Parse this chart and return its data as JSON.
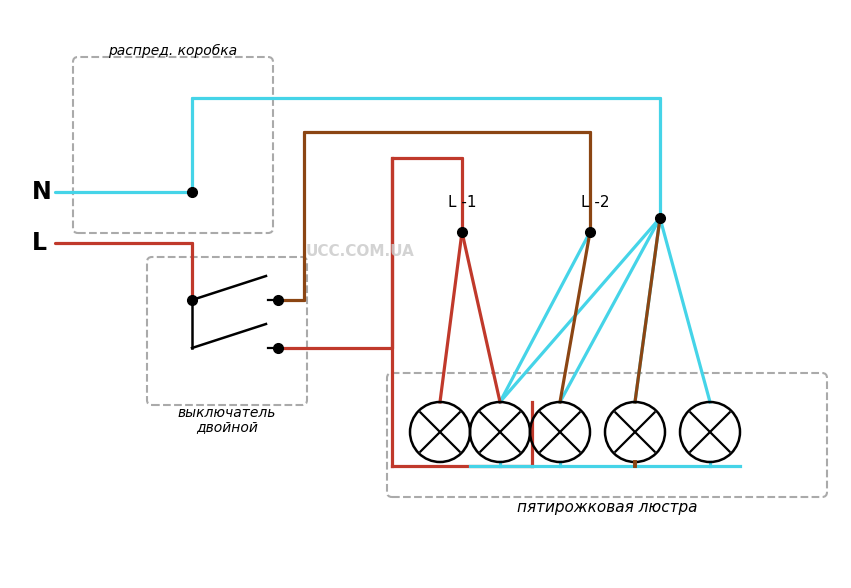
{
  "bg_color": "#ffffff",
  "cyan": "#45d4e8",
  "red": "#c0392b",
  "brown": "#8B4513",
  "black": "#000000",
  "dashed_gray": "#aaaaaa",
  "label_N": "N",
  "label_L": "L",
  "label_L1": "L -1",
  "label_L2": "L -2",
  "label_box": "распред. коробка",
  "label_switch": "выключатель",
  "label_switch2": "двойной",
  "label_chandelier": "пятирожковая люстра",
  "label_watermark": "UCC.COM.UA",
  "figsize": [
    8.51,
    5.88
  ],
  "dpi": 100
}
